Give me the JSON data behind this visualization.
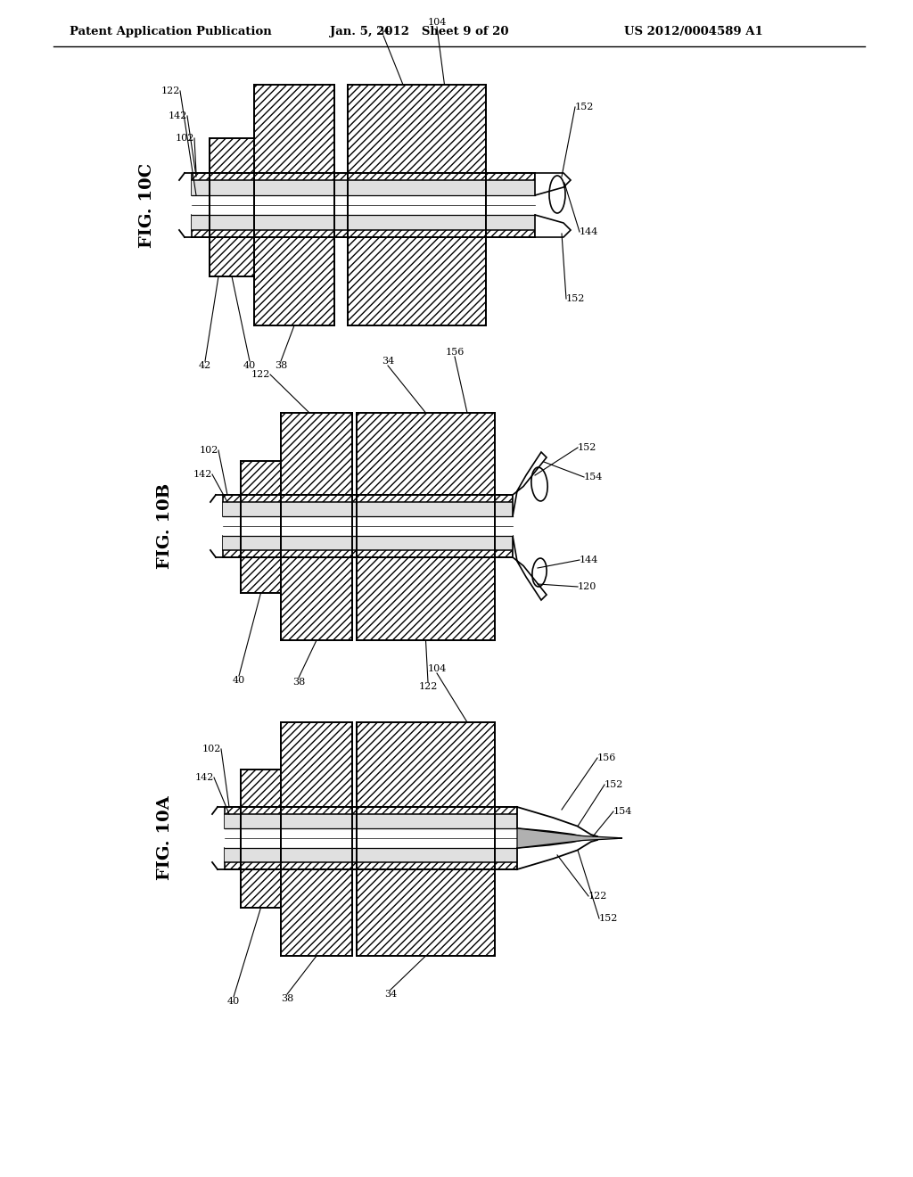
{
  "bg_color": "#ffffff",
  "line_color": "#000000",
  "header_left": "Patent Application Publication",
  "header_center": "Jan. 5, 2012   Sheet 9 of 20",
  "header_right": "US 2012/0004589 A1"
}
